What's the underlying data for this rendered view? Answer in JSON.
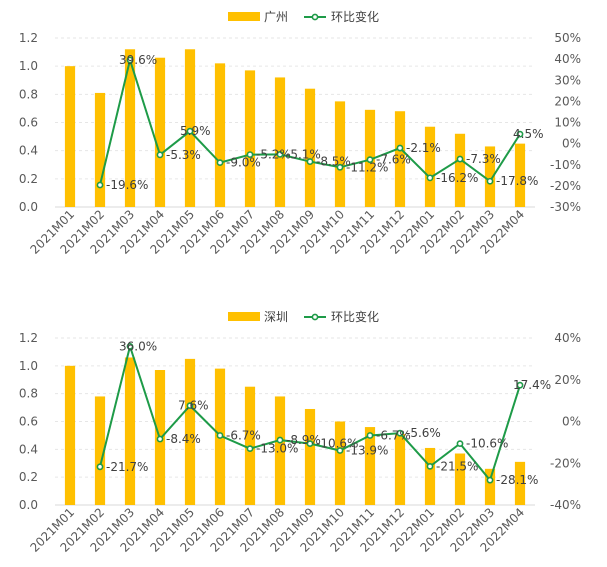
{
  "chart_data": [
    {
      "type": "bar+line",
      "title": "",
      "legend": [
        "广州",
        "环比变化"
      ],
      "legend_position": "top",
      "categories": [
        "2021M01",
        "2021M02",
        "2021M03",
        "2021M04",
        "2021M05",
        "2021M06",
        "2021M07",
        "2021M08",
        "2021M09",
        "2021M10",
        "2021M11",
        "2021M12",
        "2022M01",
        "2022M02",
        "2022M03",
        "2022M04"
      ],
      "bar_series": {
        "name": "广州",
        "values": [
          1.0,
          0.81,
          1.12,
          1.06,
          1.12,
          1.02,
          0.97,
          0.92,
          0.84,
          0.75,
          0.69,
          0.68,
          0.57,
          0.52,
          0.43,
          0.45
        ]
      },
      "line_series": {
        "name": "环比变化",
        "values": [
          null,
          -19.6,
          39.6,
          -5.3,
          5.9,
          -9.0,
          -5.2,
          -5.1,
          -8.5,
          -11.2,
          -7.6,
          -2.1,
          -16.2,
          -7.3,
          -17.8,
          4.5
        ]
      },
      "data_labels": [
        "",
        "-19.6%",
        "39.6%",
        "-5.3%",
        "5.9%",
        "-9.0%",
        "-5.2%",
        "-5.1%",
        "-8.5%",
        "-11.2%",
        "-7.6%",
        "-2.1%",
        "-16.2%",
        "-7.3%",
        "-17.8%",
        "4.5%"
      ],
      "y_left": {
        "min": 0,
        "max": 1.2,
        "ticks": [
          "0.0",
          "0.2",
          "0.4",
          "0.6",
          "0.8",
          "1.0",
          "1.2"
        ]
      },
      "y_right": {
        "min": -30,
        "max": 50,
        "ticks": [
          "-30%",
          "-20%",
          "-10%",
          "0%",
          "10%",
          "20%",
          "30%",
          "40%",
          "50%"
        ]
      }
    },
    {
      "type": "bar+line",
      "title": "",
      "legend": [
        "深圳",
        "环比变化"
      ],
      "legend_position": "top",
      "categories": [
        "2021M01",
        "2021M02",
        "2021M03",
        "2021M04",
        "2021M05",
        "2021M06",
        "2021M07",
        "2021M08",
        "2021M09",
        "2021M10",
        "2021M11",
        "2021M12",
        "2022M01",
        "2022M02",
        "2022M03",
        "2022M04"
      ],
      "bar_series": {
        "name": "深圳",
        "values": [
          1.0,
          0.78,
          1.06,
          0.97,
          1.05,
          0.98,
          0.85,
          0.78,
          0.69,
          0.6,
          0.56,
          0.51,
          0.41,
          0.37,
          0.26,
          0.31
        ]
      },
      "line_series": {
        "name": "环比变化",
        "values": [
          null,
          -21.7,
          36.0,
          -8.4,
          7.6,
          -6.7,
          -13.0,
          -8.9,
          -10.6,
          -13.9,
          -6.7,
          -5.6,
          -21.5,
          -10.6,
          -28.1,
          17.4
        ]
      },
      "data_labels": [
        "",
        "-21.7%",
        "36.0%",
        "-8.4%",
        "7.6%",
        "-6.7%",
        "-13.0%",
        "-8.9%",
        "-10.6%",
        "-13.9%",
        "-6.7%",
        "-5.6%",
        "-21.5%",
        "-10.6%",
        "-28.1%",
        "17.4%"
      ],
      "y_left": {
        "min": 0,
        "max": 1.2,
        "ticks": [
          "0.0",
          "0.2",
          "0.4",
          "0.6",
          "0.8",
          "1.0",
          "1.2"
        ]
      },
      "y_right": {
        "min": -40,
        "max": 40,
        "ticks": [
          "-40%",
          "-20%",
          "0%",
          "20%",
          "40%"
        ]
      }
    }
  ],
  "colors": {
    "bar": "#FFC000",
    "line": "#1E9B48",
    "marker_fill": "#ffffff"
  }
}
